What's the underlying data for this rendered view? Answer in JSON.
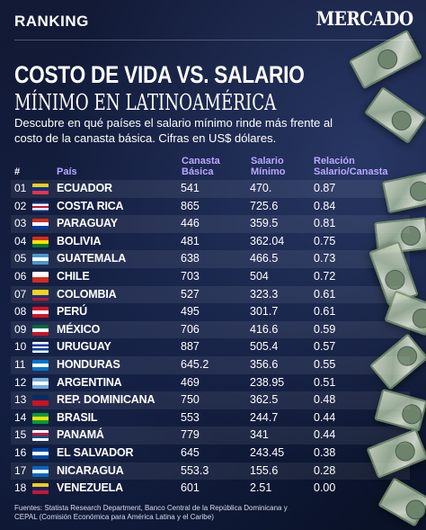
{
  "header": {
    "section": "RANKING",
    "brand": "MERCADO"
  },
  "title": {
    "line1": "COSTO DE VIDA VS. SALARIO",
    "line2": "MÍNIMO EN LATINOAMÉRICA"
  },
  "subtitle": "Descubre en qué países el salario mínimo rinde más frente al costo de la canasta básica. Cifras en US$ dólares.",
  "table": {
    "columns": {
      "num": "#",
      "country": "País",
      "canasta": "Canasta Básica",
      "salario": "Salario Mínimo",
      "relacion": "Relación Salario/Canasta"
    },
    "rows": [
      {
        "num": "01",
        "country": "ECUADOR",
        "canasta": "541",
        "salario": "470.",
        "relacion": "0.87",
        "flag": [
          "#ffd100",
          "#0033a0",
          "#ef3340"
        ]
      },
      {
        "num": "02",
        "country": "COSTA RICA",
        "canasta": "865",
        "salario": "725.6",
        "relacion": "0.84",
        "flag": [
          "#002b7f",
          "#ffffff",
          "#ce1126",
          "#ffffff",
          "#002b7f"
        ]
      },
      {
        "num": "03",
        "country": "PARAGUAY",
        "canasta": "446",
        "salario": "359.5",
        "relacion": "0.81",
        "flag": [
          "#d52b1e",
          "#ffffff",
          "#0038a8"
        ]
      },
      {
        "num": "04",
        "country": "BOLIVIA",
        "canasta": "481",
        "salario": "362.04",
        "relacion": "0.75",
        "flag": [
          "#d52b1e",
          "#f9e300",
          "#007934"
        ]
      },
      {
        "num": "05",
        "country": "GUATEMALA",
        "canasta": "638",
        "salario": "466.5",
        "relacion": "0.73",
        "flag": [
          "#4997d0",
          "#ffffff",
          "#4997d0"
        ]
      },
      {
        "num": "06",
        "country": "CHILE",
        "canasta": "703",
        "salario": "504",
        "relacion": "0.72",
        "flag": [
          "#ffffff",
          "#d52b1e"
        ]
      },
      {
        "num": "07",
        "country": "COLOMBIA",
        "canasta": "527",
        "salario": "323.3",
        "relacion": "0.61",
        "flag": [
          "#fcd116",
          "#fcd116",
          "#003893",
          "#ce1126"
        ]
      },
      {
        "num": "08",
        "country": "PERÚ",
        "canasta": "495",
        "salario": "301.7",
        "relacion": "0.61",
        "flag": [
          "#d91023",
          "#ffffff",
          "#d91023"
        ]
      },
      {
        "num": "09",
        "country": "MÉXICO",
        "canasta": "706",
        "salario": "416.6",
        "relacion": "0.59",
        "flag": [
          "#006847",
          "#ffffff",
          "#ce1126"
        ]
      },
      {
        "num": "10",
        "country": "URUGUAY",
        "canasta": "887",
        "salario": "505.4",
        "relacion": "0.57",
        "flag": [
          "#ffffff",
          "#0038a8",
          "#ffffff",
          "#0038a8",
          "#ffffff"
        ]
      },
      {
        "num": "11",
        "country": "HONDURAS",
        "canasta": "645.2",
        "salario": "356.6",
        "relacion": "0.55",
        "flag": [
          "#0073cf",
          "#ffffff",
          "#0073cf"
        ]
      },
      {
        "num": "12",
        "country": "ARGENTINA",
        "canasta": "469",
        "salario": "238.95",
        "relacion": "0.51",
        "flag": [
          "#74acdf",
          "#ffffff",
          "#74acdf"
        ]
      },
      {
        "num": "13",
        "country": "REP. DOMINICANA",
        "canasta": "750",
        "salario": "362.5",
        "relacion": "0.48",
        "flag": [
          "#002d62",
          "#ce1126"
        ]
      },
      {
        "num": "14",
        "country": "BRASIL",
        "canasta": "553",
        "salario": "244.7",
        "relacion": "0.44",
        "flag": [
          "#009c3b",
          "#ffdf00",
          "#009c3b"
        ]
      },
      {
        "num": "15",
        "country": "PANAMÁ",
        "canasta": "779",
        "salario": "341",
        "relacion": "0.44",
        "flag": [
          "#ffffff",
          "#d21034",
          "#005293",
          "#ffffff"
        ]
      },
      {
        "num": "16",
        "country": "EL SALVADOR",
        "canasta": "645",
        "salario": "243.45",
        "relacion": "0.38",
        "flag": [
          "#0047ab",
          "#ffffff",
          "#0047ab"
        ]
      },
      {
        "num": "17",
        "country": "NICARAGUA",
        "canasta": "553.3",
        "salario": "155.6",
        "relacion": "0.28",
        "flag": [
          "#0067c6",
          "#ffffff",
          "#0067c6"
        ]
      },
      {
        "num": "18",
        "country": "VENEZUELA",
        "canasta": "601",
        "salario": "2.51",
        "relacion": "0.00",
        "flag": [
          "#ffcc00",
          "#00247d",
          "#cf142b"
        ]
      }
    ]
  },
  "sources": "Fuentes: Statista Research Department, Banco Central de la República Dominicana y CEPAL (Comisión Económica para América Latina y el Caribe)",
  "colors": {
    "background": "#0f1730",
    "header_accent": "#b7a8ff",
    "text": "#ffffff"
  }
}
